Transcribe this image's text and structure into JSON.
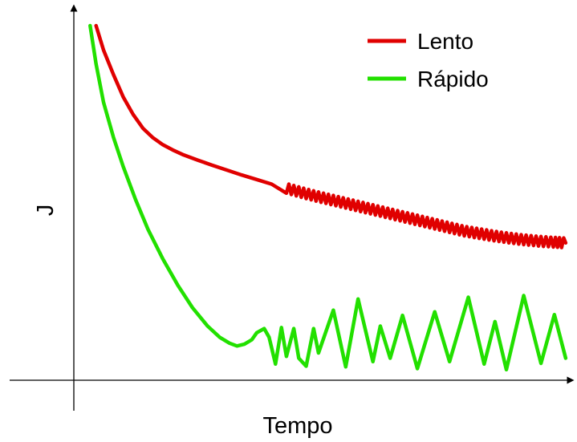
{
  "chart_data": {
    "type": "line",
    "title": "",
    "xlabel": "Tempo",
    "ylabel": "J",
    "axes_ticks": false,
    "grid": false,
    "legend_position": "top-right",
    "x_range": [
      0,
      100
    ],
    "y_range": [
      0,
      100
    ],
    "series": [
      {
        "name": "Lento",
        "color": "#e00000",
        "points": [
          [
            4.5,
            100
          ],
          [
            6,
            93
          ],
          [
            8,
            86
          ],
          [
            10,
            79.5
          ],
          [
            12,
            74.5
          ],
          [
            14,
            70.5
          ],
          [
            16,
            67.8
          ],
          [
            18,
            65.8
          ],
          [
            20,
            64.3
          ],
          [
            22,
            63
          ],
          [
            25,
            61.4
          ],
          [
            28,
            59.9
          ],
          [
            31,
            58.5
          ],
          [
            34,
            57.1
          ],
          [
            37,
            55.8
          ],
          [
            40,
            54.5
          ],
          [
            43,
            53.3
          ],
          [
            46,
            52.1
          ],
          [
            49,
            51
          ],
          [
            52,
            50
          ],
          [
            55,
            49
          ],
          [
            58,
            48
          ],
          [
            61,
            47
          ],
          [
            64,
            46
          ],
          [
            67,
            45
          ],
          [
            70,
            44
          ],
          [
            73,
            43
          ],
          [
            76,
            42
          ],
          [
            79,
            41
          ],
          [
            82,
            40.3
          ],
          [
            85,
            39.6
          ],
          [
            88,
            39
          ],
          [
            91,
            38.5
          ],
          [
            94,
            38.1
          ],
          [
            97,
            37.8
          ],
          [
            99.5,
            37.6
          ]
        ],
        "noise_from_x": 42,
        "noise_amplitude": 1.4
      },
      {
        "name": "Rápido",
        "color": "#22e000",
        "points": [
          [
            3.3,
            100
          ],
          [
            4.5,
            89
          ],
          [
            6,
            78
          ],
          [
            8,
            68
          ],
          [
            10,
            59.5
          ],
          [
            12.5,
            50
          ],
          [
            15,
            41.5
          ],
          [
            18,
            33
          ],
          [
            21,
            25.5
          ],
          [
            24,
            19
          ],
          [
            27,
            13.8
          ],
          [
            29.5,
            10.5
          ],
          [
            31.5,
            8.8
          ],
          [
            33,
            8
          ],
          [
            34.5,
            8.5
          ],
          [
            36,
            9.8
          ],
          [
            37,
            11.8
          ],
          [
            38.5,
            13
          ],
          [
            39.5,
            10.5
          ],
          [
            40.8,
            2.8
          ],
          [
            42,
            13.3
          ],
          [
            43,
            5
          ],
          [
            44.5,
            13
          ],
          [
            45.5,
            4.5
          ],
          [
            47,
            2.2
          ],
          [
            48.5,
            13
          ],
          [
            49.5,
            6
          ],
          [
            52.5,
            18.3
          ],
          [
            55,
            2
          ],
          [
            57.5,
            21.5
          ],
          [
            60.5,
            3.5
          ],
          [
            62,
            13.7
          ],
          [
            64,
            4.5
          ],
          [
            66.5,
            16.8
          ],
          [
            69.5,
            1.5
          ],
          [
            73,
            17.8
          ],
          [
            76,
            3.5
          ],
          [
            79.8,
            22
          ],
          [
            83,
            2.8
          ],
          [
            85.2,
            15
          ],
          [
            87.5,
            1.2
          ],
          [
            91,
            22.5
          ],
          [
            94.5,
            3
          ],
          [
            97.2,
            17
          ],
          [
            99.5,
            4.5
          ]
        ]
      }
    ]
  }
}
